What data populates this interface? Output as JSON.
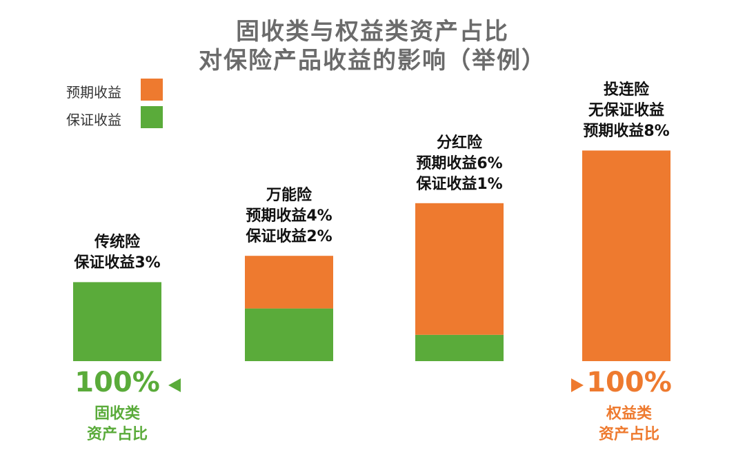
{
  "title": {
    "line1": "固收类与权益类资产占比",
    "line2": "对保险产品收益的影响（举例）"
  },
  "colors": {
    "guaranteed": "#5aab3a",
    "expected": "#ee7a2f",
    "title": "#6b6b6b"
  },
  "legend": [
    {
      "label": "预期收益",
      "series": "expected"
    },
    {
      "label": "保证收益",
      "series": "guaranteed"
    }
  ],
  "chart_data": {
    "type": "bar",
    "stacked": true,
    "categories": [
      "传统险",
      "万能险",
      "分红险",
      "投连险"
    ],
    "series": [
      {
        "name": "保证收益",
        "key": "guaranteed",
        "values": [
          3,
          2,
          1,
          0
        ]
      },
      {
        "name": "预期收益",
        "key": "expected",
        "values": [
          0,
          2,
          5,
          8
        ]
      }
    ],
    "bar_labels": [
      [
        "传统险",
        "保证收益3%"
      ],
      [
        "万能险",
        "预期收益4%",
        "保证收益2%"
      ],
      [
        "分红险",
        "预期收益6%",
        "保证收益1%"
      ],
      [
        "投连险",
        "无保证收益",
        "预期收益8%"
      ]
    ],
    "ylim": [
      0,
      8
    ]
  },
  "footer": {
    "left_pct": "100%",
    "left_caption": [
      "固收类",
      "资产占比"
    ],
    "right_pct": "100%",
    "right_caption": [
      "权益类",
      "资产占比"
    ]
  }
}
